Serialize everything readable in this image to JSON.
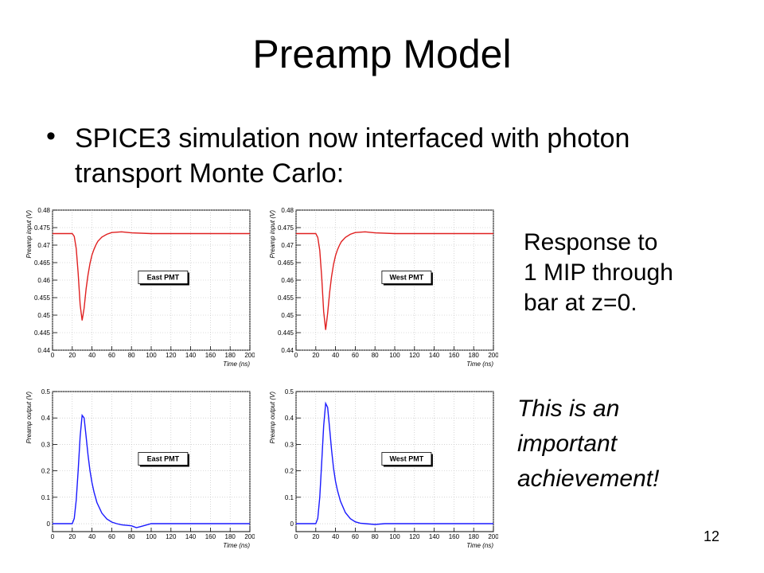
{
  "slide": {
    "title": "Preamp Model",
    "bullet_symbol": "•",
    "bullet_text": "SPICE3 simulation now interfaced with photon transport Monte Carlo:",
    "note_response": "Response to\n1 MIP through\nbar at z=0.",
    "note_achievement": "This is an\nimportant\nachievement!",
    "page_number": "12"
  },
  "chart_data": [
    {
      "type": "line",
      "legend": "East PMT",
      "xlabel": "Time (ns)",
      "ylabel": "Preamp input (V)",
      "xlim": [
        0,
        200
      ],
      "ylim": [
        0.44,
        0.48
      ],
      "xticks": [
        0,
        20,
        40,
        60,
        80,
        100,
        120,
        140,
        160,
        180,
        200
      ],
      "yticks": [
        0.44,
        0.445,
        0.45,
        0.455,
        0.46,
        0.465,
        0.47,
        0.475,
        0.48
      ],
      "yticklabels": [
        "0.44",
        "0.445",
        "0.45",
        "0.455",
        "0.46",
        "0.465",
        "0.47",
        "0.475",
        "0.48"
      ],
      "grid": true,
      "legend_position": "center",
      "line_color": "#e02020",
      "x": [
        0,
        20,
        22,
        24,
        26,
        28,
        30,
        32,
        34,
        36,
        38,
        40,
        42,
        44,
        46,
        50,
        55,
        60,
        70,
        80,
        100,
        120,
        200
      ],
      "y": [
        0.4733,
        0.4733,
        0.4725,
        0.469,
        0.462,
        0.453,
        0.4485,
        0.452,
        0.4575,
        0.4615,
        0.4648,
        0.4672,
        0.4688,
        0.4701,
        0.4711,
        0.4723,
        0.4731,
        0.4736,
        0.4738,
        0.4735,
        0.4733,
        0.4733,
        0.4733
      ]
    },
    {
      "type": "line",
      "legend": "West PMT",
      "xlabel": "Time (ns)",
      "ylabel": "Preamp input (V)",
      "xlim": [
        0,
        200
      ],
      "ylim": [
        0.44,
        0.48
      ],
      "xticks": [
        0,
        20,
        40,
        60,
        80,
        100,
        120,
        140,
        160,
        180,
        200
      ],
      "yticks": [
        0.44,
        0.445,
        0.45,
        0.455,
        0.46,
        0.465,
        0.47,
        0.475,
        0.48
      ],
      "yticklabels": [
        "0.44",
        "0.445",
        "0.45",
        "0.455",
        "0.46",
        "0.465",
        "0.47",
        "0.475",
        "0.48"
      ],
      "grid": true,
      "legend_position": "center",
      "line_color": "#e02020",
      "x": [
        0,
        20,
        22,
        24,
        26,
        28,
        30,
        32,
        34,
        36,
        38,
        40,
        42,
        44,
        46,
        50,
        55,
        60,
        70,
        80,
        100,
        120,
        200
      ],
      "y": [
        0.4733,
        0.4733,
        0.4722,
        0.4685,
        0.461,
        0.451,
        0.4458,
        0.4505,
        0.4565,
        0.461,
        0.4645,
        0.467,
        0.4687,
        0.47,
        0.471,
        0.4722,
        0.4731,
        0.4736,
        0.4738,
        0.4735,
        0.4733,
        0.4733,
        0.4733
      ]
    },
    {
      "type": "line",
      "legend": "East PMT",
      "xlabel": "Time (ns)",
      "ylabel": "Preamp output (V)",
      "xlim": [
        0,
        200
      ],
      "ylim": [
        -0.03,
        0.5
      ],
      "xticks": [
        0,
        20,
        40,
        60,
        80,
        100,
        120,
        140,
        160,
        180,
        200
      ],
      "yticks": [
        0,
        0.1,
        0.2,
        0.3,
        0.4,
        0.5
      ],
      "yticklabels": [
        "0",
        "0.1",
        "0.2",
        "0.3",
        "0.4",
        "0.5"
      ],
      "grid": true,
      "legend_position": "center",
      "line_color": "#1a1aff",
      "x": [
        0,
        20,
        22,
        24,
        26,
        28,
        30,
        32,
        34,
        36,
        38,
        40,
        42,
        45,
        50,
        55,
        60,
        65,
        70,
        80,
        85,
        90,
        100,
        120,
        200
      ],
      "y": [
        0,
        0,
        0.02,
        0.09,
        0.2,
        0.33,
        0.41,
        0.4,
        0.33,
        0.26,
        0.2,
        0.155,
        0.12,
        0.08,
        0.04,
        0.018,
        0.006,
        0.0,
        -0.004,
        -0.008,
        -0.015,
        -0.01,
        0.0,
        0.0,
        0.0
      ]
    },
    {
      "type": "line",
      "legend": "West PMT",
      "xlabel": "Time (ns)",
      "ylabel": "Preamp output (V)",
      "xlim": [
        0,
        200
      ],
      "ylim": [
        -0.03,
        0.5
      ],
      "xticks": [
        0,
        20,
        40,
        60,
        80,
        100,
        120,
        140,
        160,
        180,
        200
      ],
      "yticks": [
        0,
        0.1,
        0.2,
        0.3,
        0.4,
        0.5
      ],
      "yticklabels": [
        "0",
        "0.1",
        "0.2",
        "0.3",
        "0.4",
        "0.5"
      ],
      "grid": true,
      "legend_position": "center",
      "line_color": "#1a1aff",
      "x": [
        0,
        20,
        22,
        24,
        26,
        28,
        30,
        32,
        34,
        36,
        38,
        40,
        42,
        45,
        50,
        55,
        60,
        65,
        70,
        80,
        90,
        100,
        120,
        200
      ],
      "y": [
        0,
        0,
        0.02,
        0.1,
        0.23,
        0.37,
        0.455,
        0.44,
        0.36,
        0.28,
        0.21,
        0.16,
        0.125,
        0.085,
        0.042,
        0.019,
        0.007,
        0.002,
        0.0,
        -0.003,
        0.0,
        0.0,
        0.0,
        0.0
      ]
    }
  ]
}
